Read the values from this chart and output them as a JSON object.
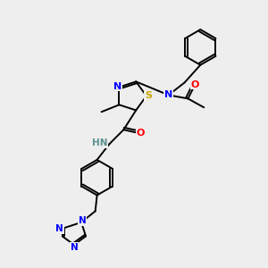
{
  "background_color": "#eeeeee",
  "atom_colors": {
    "C": "#000000",
    "N": "#0000ff",
    "O": "#ff0000",
    "S": "#ccaa00",
    "H": "#5a9090"
  },
  "bond_lw": 1.4,
  "font_size": 8.0
}
